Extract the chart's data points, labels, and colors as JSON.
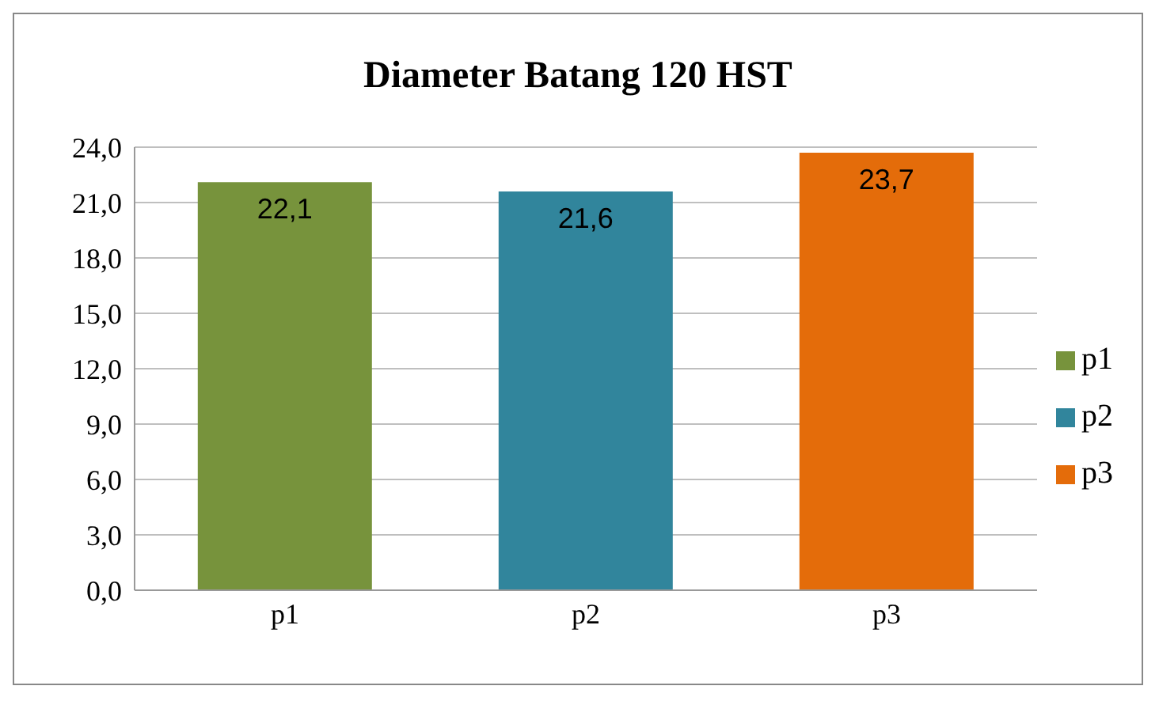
{
  "chart_data": {
    "type": "bar",
    "title": "Diameter Batang 120 HST",
    "categories": [
      "p1",
      "p2",
      "p3"
    ],
    "series": [
      {
        "name": "p1",
        "color": "#77933c",
        "values": [
          22.1,
          null,
          null
        ],
        "value_labels": [
          "22,1",
          null,
          null
        ]
      },
      {
        "name": "p2",
        "color": "#31859c",
        "values": [
          null,
          21.6,
          null
        ],
        "value_labels": [
          null,
          "21,6",
          null
        ]
      },
      {
        "name": "p3",
        "color": "#e46c0a",
        "values": [
          null,
          null,
          23.7
        ],
        "value_labels": [
          null,
          null,
          "23,7"
        ]
      }
    ],
    "ylim": [
      0,
      24
    ],
    "yticks": [
      {
        "value": 0,
        "label": "0,0"
      },
      {
        "value": 3,
        "label": "3,0"
      },
      {
        "value": 6,
        "label": "6,0"
      },
      {
        "value": 9,
        "label": "9,0"
      },
      {
        "value": 12,
        "label": "12,0"
      },
      {
        "value": 15,
        "label": "15,0"
      },
      {
        "value": 18,
        "label": "18,0"
      },
      {
        "value": 21,
        "label": "21,0"
      },
      {
        "value": 24,
        "label": "24,0"
      }
    ],
    "grid": "y",
    "legend": "right"
  }
}
